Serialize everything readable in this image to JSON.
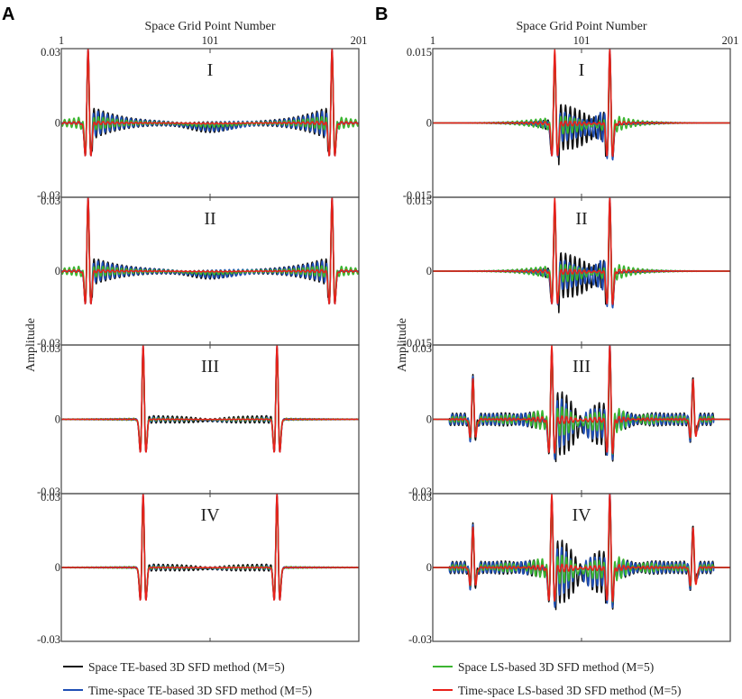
{
  "chart_data": {
    "type": "line",
    "x_title": "Space Grid Point Number",
    "y_title": "Amplitude",
    "x_ticks": [
      1,
      101,
      201
    ],
    "series_styles": [
      {
        "key": "space_te",
        "name": "Space TE-based 3D SFD method (M=5)",
        "color": "#111111"
      },
      {
        "key": "ts_te",
        "name": "Time-space TE-based 3D SFD method (M=5)",
        "color": "#1f4fb5"
      },
      {
        "key": "space_ls",
        "name": "Space LS-based 3D SFD method (M=5)",
        "color": "#3cb531"
      },
      {
        "key": "ts_ls",
        "name": "Time-space LS-based 3D SFD method (M=5)",
        "color": "#e8211b"
      }
    ],
    "panels": [
      {
        "letter": "A",
        "legend": [
          "Space TE-based 3D SFD method (M=5)",
          "Time-space TE-based 3D SFD method (M=5)"
        ],
        "legend_keys": [
          "space_te",
          "ts_te"
        ],
        "rows": [
          {
            "label": "I",
            "ylim": [
              -0.03,
              0.03
            ],
            "y_tick_labels": [
              "0.03",
              "0",
              "-0.03"
            ],
            "wavelets": [
              {
                "center": 19,
                "amp": 0.03
              },
              {
                "center": 183,
                "amp": 0.03
              }
            ],
            "dispersion": {
              "amp": 0.0068,
              "decay": 22
            },
            "secondary": [],
            "lateral": {
              "amp": 0,
              "start": 0,
              "end": 0
            }
          },
          {
            "label": "II",
            "ylim": [
              -0.03,
              0.03
            ],
            "y_tick_labels": [
              "0.03",
              "0",
              "-0.03"
            ],
            "wavelets": [
              {
                "center": 19,
                "amp": 0.03
              },
              {
                "center": 183,
                "amp": 0.03
              }
            ],
            "dispersion": {
              "amp": 0.0058,
              "decay": 24
            },
            "secondary": [],
            "lateral": {
              "amp": 0,
              "start": 0,
              "end": 0
            }
          },
          {
            "label": "III",
            "ylim": [
              -0.03,
              0.03
            ],
            "y_tick_labels": [
              "0.03",
              "0",
              "-0.03"
            ],
            "wavelets": [
              {
                "center": 56,
                "amp": 0.03
              },
              {
                "center": 146,
                "amp": 0.03
              }
            ],
            "dispersion": {
              "amp": 0.0014,
              "decay": 50
            },
            "secondary": [],
            "lateral": {
              "amp": 0,
              "start": 0,
              "end": 0
            }
          },
          {
            "label": "IV",
            "ylim": [
              -0.03,
              0.03
            ],
            "y_tick_labels": [
              "0.03",
              "0",
              "-0.03"
            ],
            "wavelets": [
              {
                "center": 56,
                "amp": 0.03
              },
              {
                "center": 146,
                "amp": 0.03
              }
            ],
            "dispersion": {
              "amp": 0.0013,
              "decay": 50
            },
            "secondary": [],
            "lateral": {
              "amp": 0,
              "start": 0,
              "end": 0
            }
          }
        ]
      },
      {
        "letter": "B",
        "legend": [
          "Space LS-based 3D SFD method (M=5)",
          "Time-space LS-based 3D SFD method (M=5)"
        ],
        "legend_keys": [
          "space_ls",
          "ts_ls"
        ],
        "rows": [
          {
            "label": "I",
            "ylim": [
              -0.015,
              0.015
            ],
            "y_tick_labels": [
              "0.015",
              "0",
              "-0.015"
            ],
            "wavelets": [
              {
                "center": 83,
                "amp": 0.015
              },
              {
                "center": 120,
                "amp": 0.015
              }
            ],
            "dispersion": {
              "amp": 0.0045,
              "decay": 18
            },
            "secondary": [],
            "lateral": {
              "amp": 0,
              "start": 0,
              "end": 0
            }
          },
          {
            "label": "II",
            "ylim": [
              -0.015,
              0.015
            ],
            "y_tick_labels": [
              "0.015",
              "0",
              "-0.015"
            ],
            "wavelets": [
              {
                "center": 83,
                "amp": 0.015
              },
              {
                "center": 120,
                "amp": 0.015
              }
            ],
            "dispersion": {
              "amp": 0.0045,
              "decay": 18
            },
            "secondary": [],
            "lateral": {
              "amp": 0,
              "start": 0,
              "end": 0
            }
          },
          {
            "label": "III",
            "ylim": [
              -0.03,
              0.03
            ],
            "y_tick_labels": [
              "0.03",
              "0",
              "-0.03"
            ],
            "wavelets": [
              {
                "center": 81,
                "amp": 0.03
              },
              {
                "center": 120,
                "amp": 0.03
              }
            ],
            "dispersion": {
              "amp": 0.0095,
              "decay": 18
            },
            "secondary": [
              {
                "center": 28,
                "amp": 0.016
              },
              {
                "center": 176,
                "amp": 0.016
              }
            ],
            "lateral": {
              "amp": 0.0025,
              "start": 12,
              "end": 190
            }
          },
          {
            "label": "IV",
            "ylim": [
              -0.03,
              0.03
            ],
            "y_tick_labels": [
              "0.03",
              "0",
              "-0.03"
            ],
            "wavelets": [
              {
                "center": 81,
                "amp": 0.03
              },
              {
                "center": 120,
                "amp": 0.03
              }
            ],
            "dispersion": {
              "amp": 0.0095,
              "decay": 18
            },
            "secondary": [
              {
                "center": 28,
                "amp": 0.016
              },
              {
                "center": 176,
                "amp": 0.016
              }
            ],
            "lateral": {
              "amp": 0.0025,
              "start": 12,
              "end": 190
            }
          }
        ]
      }
    ]
  }
}
